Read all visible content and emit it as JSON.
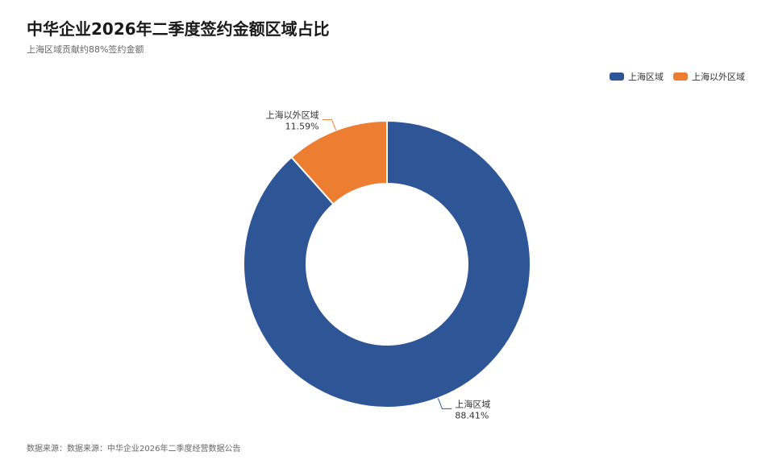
{
  "title": "中华企业2026年二季度签约金额区域占比",
  "subtitle": "上海区域贡献约88%签约金额",
  "source": "数据来源：数据来源：中华企业2026年二季度经营数据公告",
  "chart_data": {
    "type": "pie",
    "donut": true,
    "title": "中华企业2026年二季度签约金额区域占比",
    "subtitle": "上海区域贡献约88%签约金额",
    "legend_position": "top-right",
    "slices": [
      {
        "label": "上海区域",
        "value": 88.41,
        "display": "88.41%",
        "color": "#2e5596"
      },
      {
        "label": "上海以外区域",
        "value": 11.59,
        "display": "11.59%",
        "color": "#ed7d31"
      }
    ]
  }
}
